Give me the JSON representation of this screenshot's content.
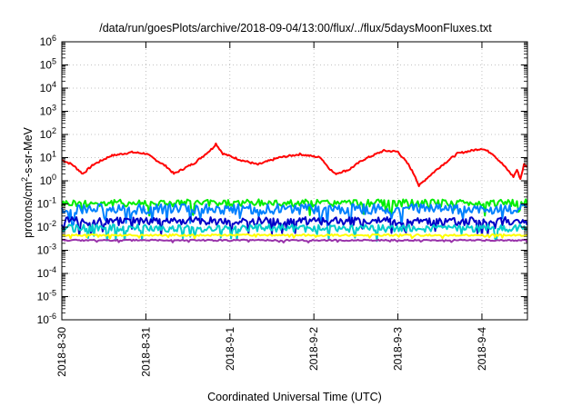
{
  "chart_data": {
    "type": "line",
    "title": "/data/run/goesPlots/archive/2018-09-04/13:00/flux/../flux/5daysMoonFluxes.txt",
    "xlabel": "Coordinated Universal Time (UTC)",
    "ylabel_parts": [
      "protons/cm",
      "2",
      "-s-sr-MeV"
    ],
    "x_ticks": [
      "2018-8-30",
      "2018-8-31",
      "2018-9-1",
      "2018-9-2",
      "2018-9-3",
      "2018-9-4"
    ],
    "xlim": [
      "2018-08-30 00:00",
      "2018-09-04 13:00"
    ],
    "ylim": [
      1e-06,
      1000000.0
    ],
    "yscale": "log",
    "y_ticks": [
      {
        "value": 1e-06,
        "base": "10",
        "exp": "-6"
      },
      {
        "value": 1e-05,
        "base": "10",
        "exp": "-5"
      },
      {
        "value": 0.0001,
        "base": "10",
        "exp": "-4"
      },
      {
        "value": 0.001,
        "base": "10",
        "exp": "-3"
      },
      {
        "value": 0.01,
        "base": "10",
        "exp": "-2"
      },
      {
        "value": 0.1,
        "base": "10",
        "exp": "-1"
      },
      {
        "value": 1.0,
        "base": "10",
        "exp": "0"
      },
      {
        "value": 10.0,
        "base": "10",
        "exp": "1"
      },
      {
        "value": 100.0,
        "base": "10",
        "exp": "2"
      },
      {
        "value": 1000.0,
        "base": "10",
        "exp": "3"
      },
      {
        "value": 10000.0,
        "base": "10",
        "exp": "4"
      },
      {
        "value": 100000.0,
        "base": "10",
        "exp": "5"
      },
      {
        "value": 1000000.0,
        "base": "10",
        "exp": "6"
      }
    ],
    "grid": true,
    "series": [
      {
        "color": "#ff0000",
        "values": [
          [
            "2018-08-30 00:00",
            8
          ],
          [
            "2018-08-30 03:00",
            5
          ],
          [
            "2018-08-30 06:00",
            2
          ],
          [
            "2018-08-30 09:00",
            5
          ],
          [
            "2018-08-30 14:00",
            12
          ],
          [
            "2018-08-30 20:00",
            17
          ],
          [
            "2018-08-31 00:00",
            15
          ],
          [
            "2018-08-31 06:00",
            4
          ],
          [
            "2018-08-31 08:00",
            2
          ],
          [
            "2018-08-31 14:00",
            6
          ],
          [
            "2018-08-31 19:00",
            25
          ],
          [
            "2018-08-31 20:00",
            40
          ],
          [
            "2018-08-31 22:00",
            15
          ],
          [
            "2018-09-01 03:00",
            8
          ],
          [
            "2018-09-01 08:00",
            5
          ],
          [
            "2018-09-01 14:00",
            10
          ],
          [
            "2018-09-01 20:00",
            14
          ],
          [
            "2018-09-02 02:00",
            10
          ],
          [
            "2018-09-02 04:00",
            4
          ],
          [
            "2018-09-02 06:00",
            2
          ],
          [
            "2018-09-02 10:00",
            3
          ],
          [
            "2018-09-02 14:00",
            8
          ],
          [
            "2018-09-02 20:00",
            20
          ],
          [
            "2018-09-03 00:00",
            18
          ],
          [
            "2018-09-03 03:00",
            5
          ],
          [
            "2018-09-03 05:00",
            1.5
          ],
          [
            "2018-09-03 06:00",
            0.6
          ],
          [
            "2018-09-03 08:00",
            1.2
          ],
          [
            "2018-09-03 12:00",
            4
          ],
          [
            "2018-09-03 17:00",
            15
          ],
          [
            "2018-09-04 00:00",
            25
          ],
          [
            "2018-09-04 03:00",
            15
          ],
          [
            "2018-09-04 06:00",
            5
          ],
          [
            "2018-09-04 09:00",
            1.5
          ],
          [
            "2018-09-04 10:00",
            3
          ],
          [
            "2018-09-04 11:00",
            1.2
          ],
          [
            "2018-09-04 12:00",
            5
          ],
          [
            "2018-09-04 13:00",
            4
          ]
        ]
      },
      {
        "color": "#00ee00",
        "level": 0.11,
        "spread": 0.16
      },
      {
        "color": "#0080ff",
        "level": 0.06,
        "spread": 0.22
      },
      {
        "color": "#0000c8",
        "level": 0.018,
        "spread": 0.18
      },
      {
        "color": "#00cccc",
        "level": 0.009,
        "spread": 0.16
      },
      {
        "color": "#ffff00",
        "level": 0.0045,
        "spread": 0.04
      },
      {
        "color": "#9933aa",
        "level": 0.0027,
        "spread": 0.03
      }
    ]
  }
}
